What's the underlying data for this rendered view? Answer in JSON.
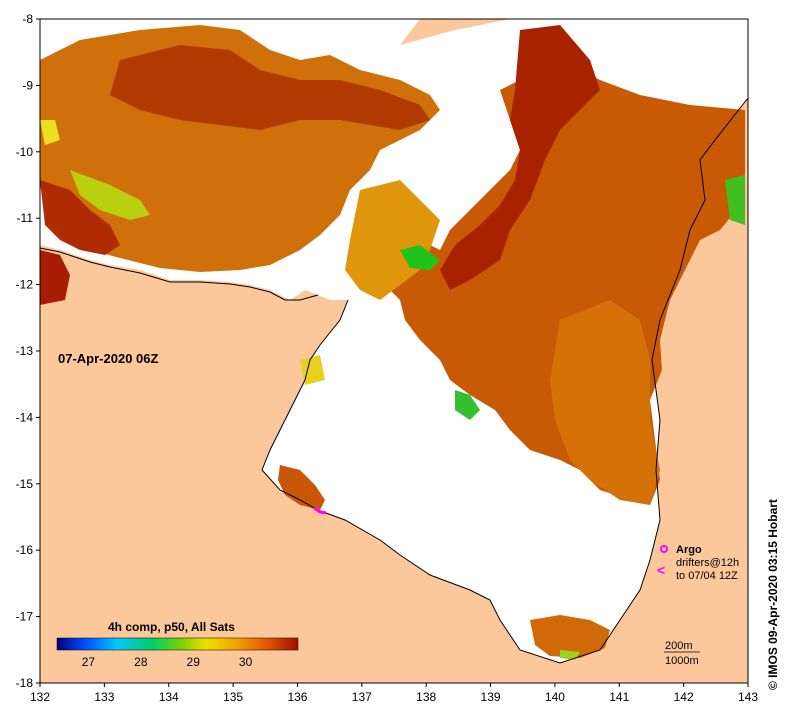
{
  "map": {
    "date_label": "07-Apr-2020 06Z",
    "x_ticks": [
      "132",
      "133",
      "134",
      "135",
      "136",
      "137",
      "138",
      "139",
      "140",
      "141",
      "142",
      "143"
    ],
    "y_ticks": [
      "-8",
      "-9",
      "-10",
      "-11",
      "-12",
      "-13",
      "-14",
      "-15",
      "-16",
      "-17",
      "-18"
    ],
    "credit": "© IMOS 09-Apr-2020 03:15 Hobart",
    "colors": {
      "land": "#fcc89b",
      "no_data": "#ffffff",
      "sst_warm": "#c84a00",
      "sst_hot": "#a01800",
      "sst_mid": "#e88a00",
      "sst_cool": "#21c21a"
    }
  },
  "colorbar": {
    "title": "4h comp, p50, All Sats",
    "ticks": [
      "27",
      "28",
      "29",
      "30"
    ],
    "range": [
      26.4,
      31.0
    ],
    "gradient": [
      "#000080",
      "#0050ff",
      "#00c8ff",
      "#00d060",
      "#80d000",
      "#f0e000",
      "#f0a000",
      "#e05000",
      "#a01000"
    ]
  },
  "legend": {
    "argo_label": "Argo",
    "drifters_label": "drifters@12h",
    "drifters_sub": "to 07/04 12Z",
    "contour_200": "200m",
    "contour_1000": "1000m",
    "marker_color": "#ff00ff"
  }
}
